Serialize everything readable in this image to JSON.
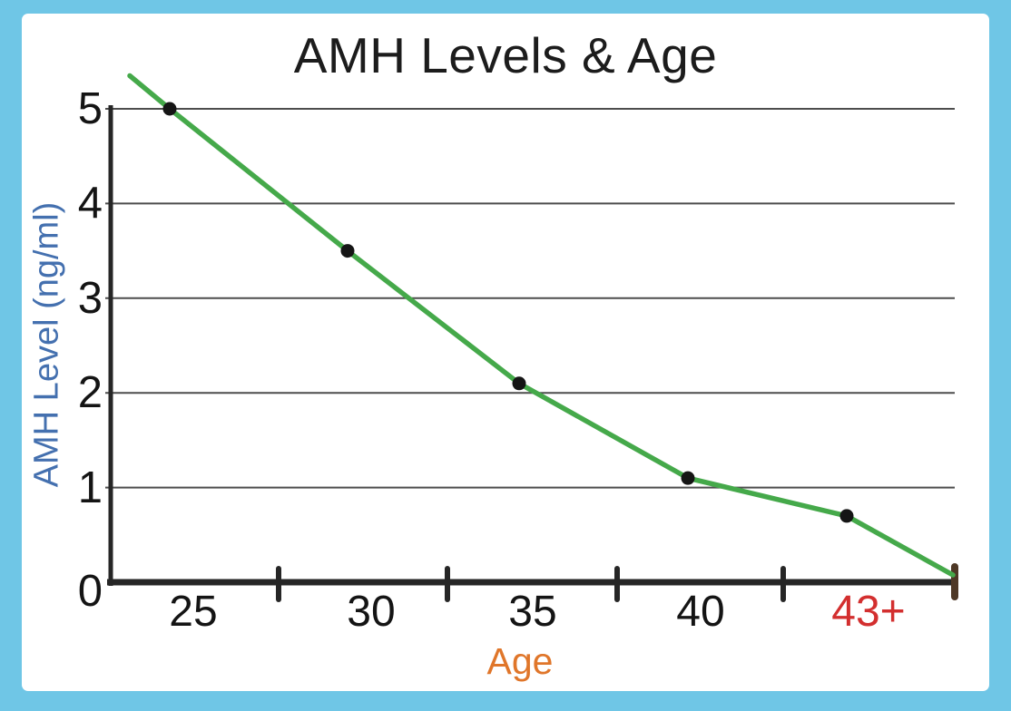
{
  "chart_data": {
    "type": "line",
    "title": "AMH Levels & Age",
    "xlabel": "Age",
    "ylabel": "AMH Level (ng/ml)",
    "categories": [
      "25",
      "30",
      "35",
      "40",
      "43+"
    ],
    "values": [
      5.0,
      3.5,
      2.1,
      1.1,
      0.7
    ],
    "line_start_value": 5.35,
    "line_end_value": 0,
    "yticks": [
      5,
      4,
      3,
      2,
      1,
      0
    ],
    "ylim": [
      0,
      5
    ],
    "grid": "horizontal-only",
    "legend": "none",
    "colors": {
      "line": "#45a94a",
      "point": "#151515",
      "axis": "#262626",
      "grid": "#4d4d4d",
      "title": "#1c1c1c",
      "ylabel_text": "#4470af",
      "xlabel_text": "#e0762a",
      "tick_label": "#141414",
      "last_category_label": "#d32f2f",
      "end_tick": "#4e3826",
      "frame": "#6fc6e6",
      "plot_bg": "#ffffff"
    }
  }
}
